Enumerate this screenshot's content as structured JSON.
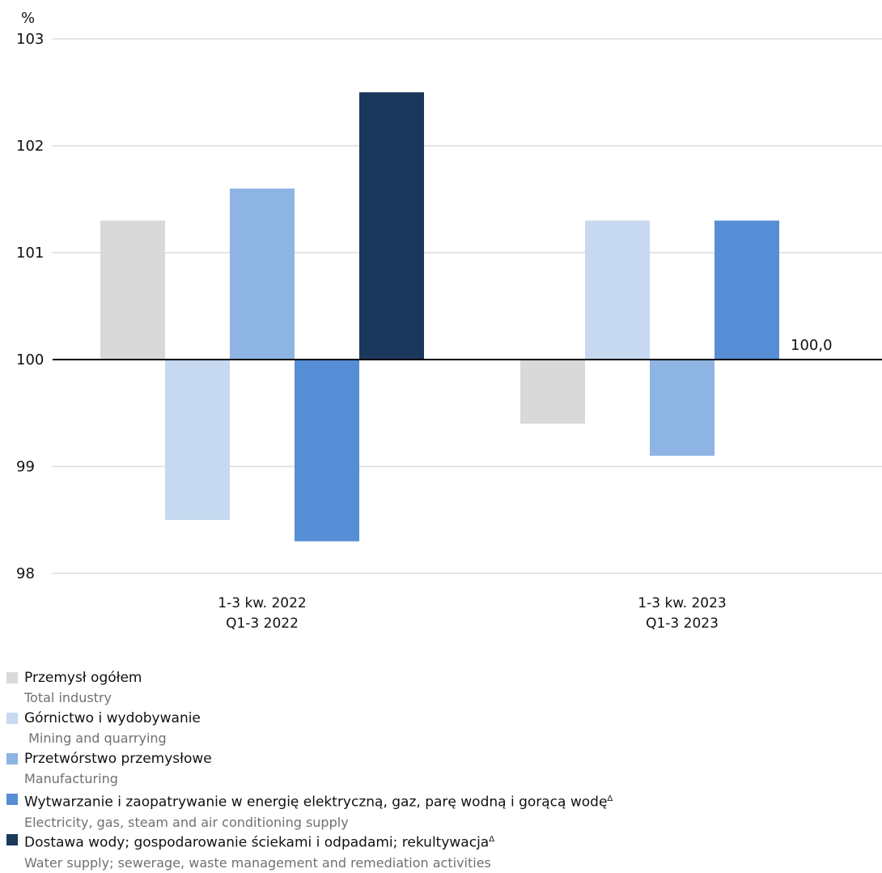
{
  "chart_data": {
    "type": "bar",
    "unit_label": "%",
    "categories": [
      {
        "pl": "1-3 kw. 2022",
        "en": "Q1-3 2022"
      },
      {
        "pl": "1-3 kw. 2023",
        "en": "Q1-3 2023"
      }
    ],
    "series": [
      {
        "name": "Przemysł ogółem",
        "name_en": "Total industry",
        "color": "#d9d9d9",
        "values": [
          101.3,
          99.4
        ]
      },
      {
        "name": "Górnictwo i wydobywanie",
        "name_en": " Mining and quarrying",
        "color": "#c6d9f1",
        "values": [
          98.5,
          101.3
        ]
      },
      {
        "name": "Przetwórstwo przemysłowe",
        "name_en": "Manufacturing",
        "color": "#8eb4e3",
        "values": [
          101.6,
          99.1
        ]
      },
      {
        "name": "Wytwarzanie i zaopatrywanie w energię elektryczną, gaz, parę wodną i gorącą wodę",
        "name_en": "Electricity, gas, steam and air conditioning supply",
        "color": "#558ed5",
        "values": [
          98.3,
          101.3
        ]
      },
      {
        "name": "Dostawa wody; gospodarowanie ściekami i odpadami; rekultywacja",
        "name_en": "Water supply; sewerage, waste management and remediation activities",
        "color": "#1b375c",
        "values": [
          102.5,
          null
        ]
      }
    ],
    "name_marks": [
      "",
      "",
      "",
      "Δ",
      "Δ"
    ],
    "baseline": 100,
    "baseline_label": "100,0",
    "ylim": [
      98,
      103
    ],
    "yticks": [
      98,
      99,
      100,
      101,
      102,
      103
    ],
    "grid": true,
    "legend_position": "bottom"
  }
}
